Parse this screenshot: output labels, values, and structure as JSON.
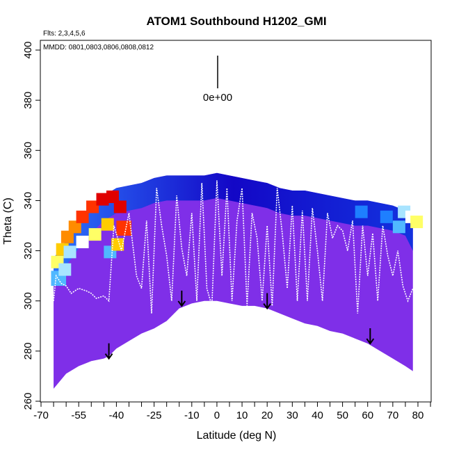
{
  "chart_data": {
    "type": "heatmap",
    "title": "ATOM1 Southbound H1202_GMI",
    "flights_text": "Flts: 2,3,4,5,6",
    "dates_text": "MMDD: 0801,0803,0806,0808,0812",
    "xlabel": "Latitude (deg N)",
    "ylabel": "Theta (C)",
    "xlim": [
      -70,
      85
    ],
    "ylim": [
      260,
      404
    ],
    "x_tick_labels": [
      "-70",
      "-55",
      "-40",
      "-25",
      "-10",
      "0",
      "10",
      "20",
      "30",
      "40",
      "50",
      "60",
      "70",
      "80"
    ],
    "x_tick_values": [
      -70,
      -55,
      -40,
      -25,
      -10,
      0,
      10,
      20,
      30,
      40,
      50,
      60,
      70,
      80
    ],
    "x_minor_ticks": [
      -65,
      -60,
      -50,
      -45,
      -35,
      -30,
      -20,
      -15,
      -5,
      5,
      15,
      25,
      35,
      45,
      55,
      65,
      75,
      85
    ],
    "y_tick_labels": [
      "260",
      "280",
      "300",
      "320",
      "340",
      "360",
      "380",
      "400"
    ],
    "y_tick_values": [
      260,
      280,
      300,
      320,
      340,
      360,
      380,
      400
    ],
    "color_scale": [
      "#7f2fe8",
      "#5a2ee0",
      "#1e1fc8",
      "#0000c0",
      "#0033dd",
      "#1e7fff",
      "#50b8ff",
      "#a8e4ff",
      "#ffffff",
      "#ffff66",
      "#ffcc00",
      "#ff8c00",
      "#ff3300",
      "#e00000"
    ],
    "colorbar_label": "0e+00",
    "surface_boundary": {
      "x": [
        -65,
        -60,
        -55,
        -50,
        -45,
        -43,
        -40,
        -35,
        -30,
        -25,
        -20,
        -15,
        -10,
        -5,
        0,
        5,
        10,
        15,
        20,
        25,
        30,
        35,
        40,
        45,
        50,
        55,
        60,
        65,
        70,
        75,
        78
      ],
      "y": [
        265,
        271,
        274,
        276,
        277,
        278,
        281,
        284,
        287,
        289,
        292,
        297,
        299,
        300,
        300,
        299,
        298,
        298,
        297,
        295,
        293,
        291,
        290,
        288,
        287,
        285,
        283,
        280,
        277,
        274,
        272
      ]
    },
    "top_boundary": {
      "x": [
        -65,
        -60,
        -55,
        -50,
        -45,
        -40,
        -35,
        -30,
        -25,
        -20,
        -15,
        -10,
        -5,
        0,
        5,
        10,
        15,
        20,
        25,
        30,
        35,
        40,
        45,
        50,
        55,
        60,
        65,
        70,
        75,
        78
      ],
      "y": [
        317,
        324,
        331,
        337,
        342,
        345,
        346,
        347,
        349,
        350,
        350,
        350,
        350,
        351,
        350,
        349,
        348,
        347,
        345,
        344,
        344,
        343,
        342,
        341,
        340,
        340,
        339,
        338,
        336,
        330
      ]
    },
    "tropopause_arrows": {
      "lat": [
        -43,
        -14,
        20,
        61
      ],
      "theta_tip": [
        277,
        298,
        297,
        283
      ]
    },
    "tropopause_line": {
      "lat": [
        -65,
        -64,
        -62,
        -60,
        -58,
        -55,
        -52,
        -50,
        -48,
        -45,
        -43,
        -41,
        -38,
        -35,
        -32,
        -30,
        -28,
        -26,
        -24,
        -22,
        -20,
        -18,
        -16,
        -14,
        -12,
        -10,
        -8,
        -6,
        -4,
        -2,
        0,
        2,
        4,
        6,
        8,
        10,
        12,
        14,
        16,
        18,
        20,
        22,
        24,
        26,
        28,
        30,
        32,
        34,
        36,
        38,
        40,
        42,
        44,
        46,
        48,
        50,
        52,
        54,
        56,
        58,
        60,
        62,
        64,
        66,
        68,
        70,
        72,
        74,
        76,
        78,
        80
      ],
      "theta": [
        300,
        310,
        307,
        306,
        303,
        305,
        304,
        303,
        301,
        302,
        300,
        330,
        320,
        335,
        310,
        305,
        332,
        295,
        345,
        330,
        318,
        300,
        342,
        321,
        310,
        335,
        300,
        347,
        305,
        298,
        348,
        310,
        345,
        300,
        332,
        345,
        298,
        335,
        325,
        300,
        330,
        298,
        345,
        327,
        305,
        338,
        300,
        336,
        300,
        337,
        320,
        300,
        335,
        325,
        330,
        328,
        320,
        332,
        295,
        330,
        310,
        327,
        300,
        330,
        318,
        310,
        320,
        306,
        300,
        305,
        296
      ]
    }
  }
}
